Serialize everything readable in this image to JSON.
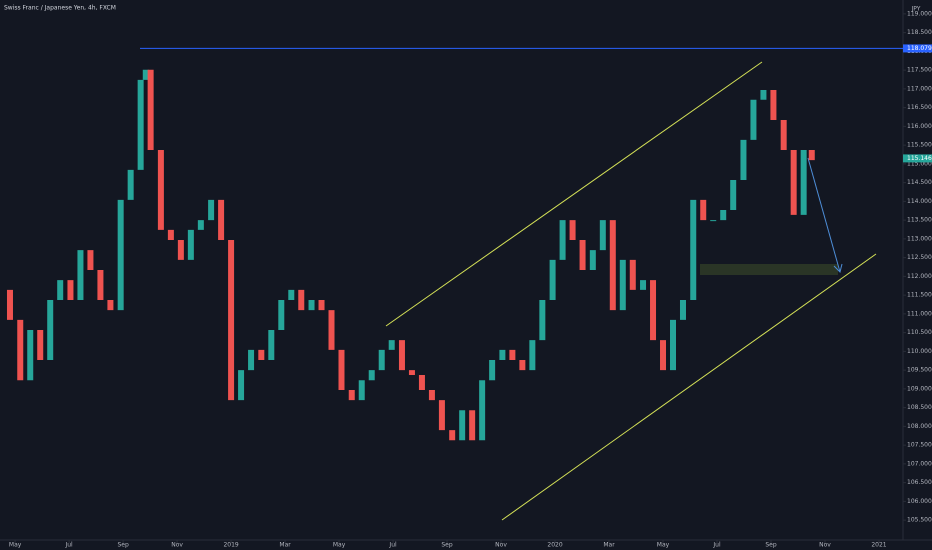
{
  "chart_data": {
    "type": "candlestick",
    "title": "Swiss Franc / Japanese Yen, 4h, FXCM",
    "currency": "JPY",
    "x": [
      -0.56,
      -0.19,
      0.19,
      0.56,
      0.93,
      1.3,
      1.67,
      2.05,
      2.42,
      2.79,
      3.16,
      3.53,
      3.91,
      4.28,
      4.65,
      4.84,
      5.02,
      5.4,
      5.77,
      6.14,
      6.51,
      6.88,
      7.26,
      7.63,
      8.0,
      8.37,
      8.74,
      9.12,
      9.49,
      9.86,
      10.23,
      10.6,
      10.98,
      11.35,
      11.72,
      12.09,
      12.47,
      12.84,
      13.21,
      13.58,
      13.95,
      14.33,
      14.7,
      15.07,
      15.44,
      15.81,
      16.19,
      16.56,
      16.93,
      17.3,
      17.67,
      18.05,
      18.42,
      18.79,
      19.16,
      19.53,
      19.91,
      20.28,
      20.65,
      21.02,
      21.4,
      21.77,
      22.14,
      22.51,
      22.88,
      23.26,
      23.63,
      24.0,
      24.37,
      24.74,
      25.12,
      25.49,
      25.86,
      26.23,
      26.6,
      26.98,
      27.35,
      27.72,
      28.09,
      28.47,
      28.84,
      29.21,
      29.51
    ],
    "series": [
      {
        "name": "CHFJPY",
        "up_color": "#26a69a",
        "down_color": "#ef5350",
        "values": [
          111.64,
          110.84,
          109.23,
          110.57,
          109.77,
          111.37,
          111.9,
          111.37,
          112.7,
          112.17,
          111.37,
          111.1,
          114.04,
          114.84,
          117.24,
          117.51,
          115.37,
          113.24,
          112.97,
          112.44,
          113.24,
          113.5,
          114.04,
          112.97,
          108.7,
          109.5,
          110.04,
          109.77,
          110.57,
          111.37,
          111.64,
          111.1,
          111.37,
          111.1,
          110.04,
          108.97,
          108.7,
          109.23,
          109.5,
          110.04,
          110.3,
          109.5,
          109.37,
          108.97,
          108.7,
          107.9,
          107.63,
          108.43,
          107.63,
          109.23,
          109.77,
          110.04,
          109.77,
          109.5,
          110.3,
          111.37,
          112.44,
          113.5,
          112.97,
          112.17,
          112.7,
          113.5,
          111.1,
          112.44,
          111.64,
          111.9,
          110.3,
          109.5,
          110.84,
          111.37,
          114.04,
          113.5,
          113.5,
          113.77,
          114.57,
          115.64,
          116.71,
          116.97,
          116.17,
          115.37,
          113.64,
          115.37,
          115.1
        ]
      }
    ],
    "xlim": [
      -0.56,
      32.89
    ],
    "ylim": [
      104.97,
      119.37
    ],
    "xticks": [
      {
        "value": 0,
        "label": "May"
      },
      {
        "value": 2,
        "label": "Jul"
      },
      {
        "value": 4,
        "label": "Sep"
      },
      {
        "value": 6,
        "label": "Nov"
      },
      {
        "value": 8,
        "label": "2019"
      },
      {
        "value": 10,
        "label": "Mar"
      },
      {
        "value": 12,
        "label": "May"
      },
      {
        "value": 14,
        "label": "Jul"
      },
      {
        "value": 16,
        "label": "Sep"
      },
      {
        "value": 18,
        "label": "Nov"
      },
      {
        "value": 20,
        "label": "2020"
      },
      {
        "value": 22,
        "label": "Mar"
      },
      {
        "value": 24,
        "label": "May"
      },
      {
        "value": 26,
        "label": "Jul"
      },
      {
        "value": 28,
        "label": "Sep"
      },
      {
        "value": 30,
        "label": "Nov"
      },
      {
        "value": 32,
        "label": "2021"
      }
    ],
    "yticks": [
      {
        "value": 105.5,
        "label": "105.500"
      },
      {
        "value": 106,
        "label": "106.000"
      },
      {
        "value": 106.5,
        "label": "106.500"
      },
      {
        "value": 107,
        "label": "107.000"
      },
      {
        "value": 107.5,
        "label": "107.500"
      },
      {
        "value": 108,
        "label": "108.000"
      },
      {
        "value": 108.5,
        "label": "108.500"
      },
      {
        "value": 109,
        "label": "109.000"
      },
      {
        "value": 109.5,
        "label": "109.500"
      },
      {
        "value": 110,
        "label": "110.000"
      },
      {
        "value": 110.5,
        "label": "110.500"
      },
      {
        "value": 111,
        "label": "111.000"
      },
      {
        "value": 111.5,
        "label": "111.500"
      },
      {
        "value": 112,
        "label": "112.000"
      },
      {
        "value": 112.5,
        "label": "112.500"
      },
      {
        "value": 113,
        "label": "113.000"
      },
      {
        "value": 113.5,
        "label": "113.500"
      },
      {
        "value": 114,
        "label": "114.000"
      },
      {
        "value": 114.5,
        "label": "114.500"
      },
      {
        "value": 115,
        "label": "115.000"
      },
      {
        "value": 115.5,
        "label": "115.500"
      },
      {
        "value": 116,
        "label": "116.000"
      },
      {
        "value": 116.5,
        "label": "116.500"
      },
      {
        "value": 117,
        "label": "117.000"
      },
      {
        "value": 117.5,
        "label": "117.500"
      },
      {
        "value": 118,
        "label": "118.000"
      },
      {
        "value": 118.5,
        "label": "118.500"
      },
      {
        "value": 119,
        "label": "119.000"
      }
    ],
    "hline": {
      "value": 118.079,
      "color": "#2962ff"
    },
    "last_price": {
      "value": 115.146,
      "color": "#26a69a"
    }
  }
}
